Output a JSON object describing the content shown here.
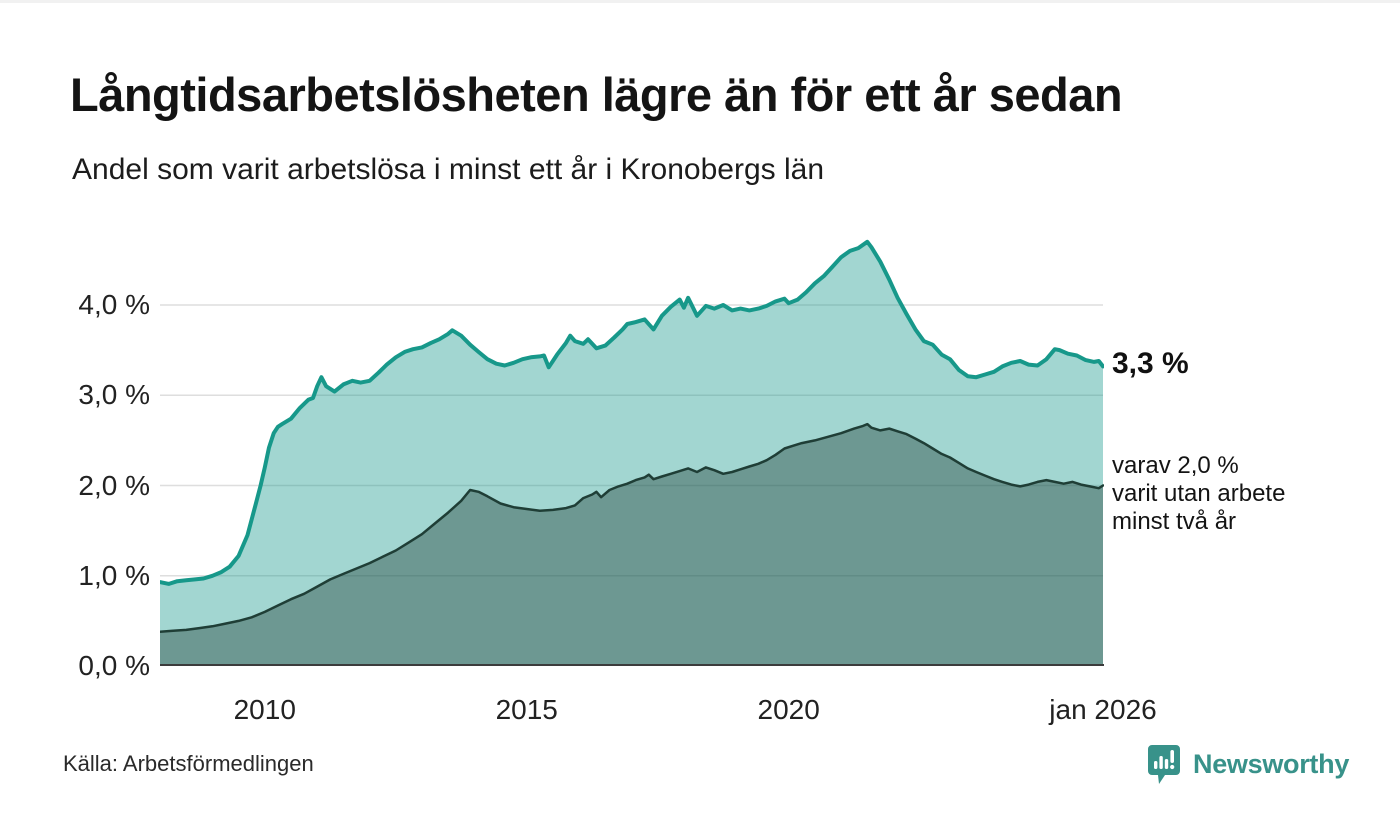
{
  "header": {
    "title": "Långtidsarbetslösheten lägre än för ett år sedan",
    "subtitle": "Andel som varit arbetslösa i minst ett år i Kronobergs län"
  },
  "footer": {
    "source": "Källa: Arbetsförmedlingen",
    "brand": "Newsworthy",
    "brand_icon": "bar-chart-speech-bubble-icon"
  },
  "colors": {
    "teal_line": "#17988a",
    "light_area_fill": "rgba(23,153,139,0.40)",
    "dark_area_overlay": "rgba(31,61,53,0.40)",
    "dark_line": "#1f3e36",
    "gridline": "#dedede",
    "axis_baseline": "#3c3c3c",
    "brand_teal": "#38928a"
  },
  "chart_data": {
    "type": "area",
    "title": "Långtidsarbetslösheten lägre än för ett år sedan",
    "subtitle": "Andel som varit arbetslösa i minst ett år i Kronobergs län",
    "unit": "%",
    "x_range": [
      2008,
      2026
    ],
    "ylim": [
      0,
      4.7
    ],
    "grid": true,
    "y_ticks": [
      {
        "value": 0,
        "label": "0,0 %"
      },
      {
        "value": 1,
        "label": "1,0 %"
      },
      {
        "value": 2,
        "label": "2,0 %"
      },
      {
        "value": 3,
        "label": "3,0 %"
      },
      {
        "value": 4,
        "label": "4,0 %"
      }
    ],
    "x_ticks": [
      {
        "year": 2010,
        "label": "2010"
      },
      {
        "year": 2015,
        "label": "2015"
      },
      {
        "year": 2020,
        "label": "2020"
      },
      {
        "year": 2026,
        "label": "jan 2026"
      }
    ],
    "annotations": {
      "end_label": "3,3 %",
      "end_value": 3.3,
      "secondary_lines": [
        "varav 2,0 %",
        "varit utan arbete",
        "minst två år"
      ],
      "secondary_value": 2.0
    },
    "series": [
      {
        "name": "Arbetslösa minst ett år",
        "points": [
          [
            2008.0,
            0.93
          ],
          [
            2008.17,
            0.91
          ],
          [
            2008.33,
            0.94
          ],
          [
            2008.5,
            0.95
          ],
          [
            2008.67,
            0.96
          ],
          [
            2008.83,
            0.97
          ],
          [
            2009.0,
            1.0
          ],
          [
            2009.17,
            1.04
          ],
          [
            2009.33,
            1.1
          ],
          [
            2009.5,
            1.22
          ],
          [
            2009.67,
            1.45
          ],
          [
            2009.83,
            1.8
          ],
          [
            2009.92,
            2.0
          ],
          [
            2010.0,
            2.2
          ],
          [
            2010.08,
            2.42
          ],
          [
            2010.17,
            2.58
          ],
          [
            2010.25,
            2.65
          ],
          [
            2010.33,
            2.68
          ],
          [
            2010.5,
            2.74
          ],
          [
            2010.67,
            2.86
          ],
          [
            2010.83,
            2.95
          ],
          [
            2010.92,
            2.97
          ],
          [
            2011.0,
            3.1
          ],
          [
            2011.08,
            3.2
          ],
          [
            2011.17,
            3.1
          ],
          [
            2011.33,
            3.04
          ],
          [
            2011.5,
            3.12
          ],
          [
            2011.67,
            3.16
          ],
          [
            2011.83,
            3.14
          ],
          [
            2012.0,
            3.16
          ],
          [
            2012.17,
            3.25
          ],
          [
            2012.33,
            3.34
          ],
          [
            2012.5,
            3.42
          ],
          [
            2012.67,
            3.48
          ],
          [
            2012.83,
            3.51
          ],
          [
            2013.0,
            3.53
          ],
          [
            2013.17,
            3.58
          ],
          [
            2013.33,
            3.62
          ],
          [
            2013.5,
            3.68
          ],
          [
            2013.58,
            3.72
          ],
          [
            2013.75,
            3.66
          ],
          [
            2013.92,
            3.56
          ],
          [
            2014.08,
            3.48
          ],
          [
            2014.25,
            3.4
          ],
          [
            2014.42,
            3.35
          ],
          [
            2014.58,
            3.33
          ],
          [
            2014.75,
            3.36
          ],
          [
            2014.92,
            3.4
          ],
          [
            2015.08,
            3.42
          ],
          [
            2015.25,
            3.43
          ],
          [
            2015.33,
            3.44
          ],
          [
            2015.42,
            3.31
          ],
          [
            2015.5,
            3.38
          ],
          [
            2015.58,
            3.45
          ],
          [
            2015.75,
            3.58
          ],
          [
            2015.83,
            3.66
          ],
          [
            2015.92,
            3.6
          ],
          [
            2016.08,
            3.57
          ],
          [
            2016.17,
            3.62
          ],
          [
            2016.33,
            3.52
          ],
          [
            2016.5,
            3.55
          ],
          [
            2016.67,
            3.64
          ],
          [
            2016.83,
            3.73
          ],
          [
            2016.92,
            3.79
          ],
          [
            2017.08,
            3.81
          ],
          [
            2017.25,
            3.84
          ],
          [
            2017.42,
            3.73
          ],
          [
            2017.58,
            3.88
          ],
          [
            2017.75,
            3.98
          ],
          [
            2017.92,
            4.06
          ],
          [
            2018.0,
            3.97
          ],
          [
            2018.08,
            4.08
          ],
          [
            2018.25,
            3.88
          ],
          [
            2018.42,
            3.99
          ],
          [
            2018.58,
            3.96
          ],
          [
            2018.75,
            4.0
          ],
          [
            2018.92,
            3.94
          ],
          [
            2019.08,
            3.96
          ],
          [
            2019.25,
            3.94
          ],
          [
            2019.42,
            3.96
          ],
          [
            2019.58,
            3.99
          ],
          [
            2019.75,
            4.04
          ],
          [
            2019.92,
            4.07
          ],
          [
            2020.0,
            4.02
          ],
          [
            2020.17,
            4.06
          ],
          [
            2020.33,
            4.14
          ],
          [
            2020.5,
            4.24
          ],
          [
            2020.67,
            4.32
          ],
          [
            2020.83,
            4.42
          ],
          [
            2021.0,
            4.53
          ],
          [
            2021.17,
            4.6
          ],
          [
            2021.33,
            4.63
          ],
          [
            2021.5,
            4.7
          ],
          [
            2021.58,
            4.64
          ],
          [
            2021.75,
            4.48
          ],
          [
            2021.92,
            4.28
          ],
          [
            2022.08,
            4.08
          ],
          [
            2022.25,
            3.9
          ],
          [
            2022.42,
            3.73
          ],
          [
            2022.58,
            3.6
          ],
          [
            2022.75,
            3.56
          ],
          [
            2022.92,
            3.45
          ],
          [
            2023.08,
            3.4
          ],
          [
            2023.25,
            3.28
          ],
          [
            2023.42,
            3.21
          ],
          [
            2023.58,
            3.2
          ],
          [
            2023.75,
            3.23
          ],
          [
            2023.92,
            3.26
          ],
          [
            2024.08,
            3.32
          ],
          [
            2024.25,
            3.36
          ],
          [
            2024.42,
            3.38
          ],
          [
            2024.58,
            3.34
          ],
          [
            2024.75,
            3.33
          ],
          [
            2024.92,
            3.4
          ],
          [
            2025.08,
            3.51
          ],
          [
            2025.17,
            3.5
          ],
          [
            2025.33,
            3.46
          ],
          [
            2025.5,
            3.44
          ],
          [
            2025.67,
            3.39
          ],
          [
            2025.83,
            3.37
          ],
          [
            2025.92,
            3.38
          ],
          [
            2026.0,
            3.32
          ]
        ]
      },
      {
        "name": "Varav utan arbete minst två år",
        "points": [
          [
            2008.0,
            0.38
          ],
          [
            2008.25,
            0.39
          ],
          [
            2008.5,
            0.4
          ],
          [
            2008.75,
            0.42
          ],
          [
            2009.0,
            0.44
          ],
          [
            2009.25,
            0.47
          ],
          [
            2009.5,
            0.5
          ],
          [
            2009.75,
            0.54
          ],
          [
            2010.0,
            0.6
          ],
          [
            2010.25,
            0.67
          ],
          [
            2010.5,
            0.74
          ],
          [
            2010.75,
            0.8
          ],
          [
            2011.0,
            0.88
          ],
          [
            2011.25,
            0.96
          ],
          [
            2011.5,
            1.02
          ],
          [
            2011.75,
            1.08
          ],
          [
            2012.0,
            1.14
          ],
          [
            2012.25,
            1.21
          ],
          [
            2012.5,
            1.28
          ],
          [
            2012.75,
            1.37
          ],
          [
            2013.0,
            1.46
          ],
          [
            2013.25,
            1.58
          ],
          [
            2013.5,
            1.7
          ],
          [
            2013.75,
            1.83
          ],
          [
            2013.92,
            1.95
          ],
          [
            2014.08,
            1.93
          ],
          [
            2014.25,
            1.88
          ],
          [
            2014.5,
            1.8
          ],
          [
            2014.75,
            1.76
          ],
          [
            2015.0,
            1.74
          ],
          [
            2015.25,
            1.72
          ],
          [
            2015.5,
            1.73
          ],
          [
            2015.75,
            1.75
          ],
          [
            2015.92,
            1.78
          ],
          [
            2016.08,
            1.86
          ],
          [
            2016.25,
            1.9
          ],
          [
            2016.33,
            1.93
          ],
          [
            2016.42,
            1.87
          ],
          [
            2016.58,
            1.95
          ],
          [
            2016.75,
            1.99
          ],
          [
            2016.92,
            2.02
          ],
          [
            2017.08,
            2.06
          ],
          [
            2017.25,
            2.09
          ],
          [
            2017.33,
            2.12
          ],
          [
            2017.42,
            2.07
          ],
          [
            2017.58,
            2.1
          ],
          [
            2017.75,
            2.13
          ],
          [
            2017.92,
            2.16
          ],
          [
            2018.08,
            2.19
          ],
          [
            2018.25,
            2.15
          ],
          [
            2018.42,
            2.2
          ],
          [
            2018.58,
            2.17
          ],
          [
            2018.75,
            2.13
          ],
          [
            2018.92,
            2.15
          ],
          [
            2019.08,
            2.18
          ],
          [
            2019.25,
            2.21
          ],
          [
            2019.42,
            2.24
          ],
          [
            2019.58,
            2.28
          ],
          [
            2019.75,
            2.34
          ],
          [
            2019.92,
            2.41
          ],
          [
            2020.08,
            2.44
          ],
          [
            2020.25,
            2.47
          ],
          [
            2020.5,
            2.5
          ],
          [
            2020.75,
            2.54
          ],
          [
            2021.0,
            2.58
          ],
          [
            2021.25,
            2.63
          ],
          [
            2021.42,
            2.66
          ],
          [
            2021.5,
            2.68
          ],
          [
            2021.58,
            2.64
          ],
          [
            2021.75,
            2.61
          ],
          [
            2021.92,
            2.63
          ],
          [
            2022.08,
            2.6
          ],
          [
            2022.25,
            2.57
          ],
          [
            2022.42,
            2.52
          ],
          [
            2022.58,
            2.47
          ],
          [
            2022.75,
            2.41
          ],
          [
            2022.92,
            2.35
          ],
          [
            2023.08,
            2.31
          ],
          [
            2023.25,
            2.25
          ],
          [
            2023.42,
            2.19
          ],
          [
            2023.58,
            2.15
          ],
          [
            2023.75,
            2.11
          ],
          [
            2023.92,
            2.07
          ],
          [
            2024.08,
            2.04
          ],
          [
            2024.25,
            2.01
          ],
          [
            2024.42,
            1.99
          ],
          [
            2024.58,
            2.01
          ],
          [
            2024.75,
            2.04
          ],
          [
            2024.92,
            2.06
          ],
          [
            2025.08,
            2.04
          ],
          [
            2025.25,
            2.02
          ],
          [
            2025.42,
            2.04
          ],
          [
            2025.58,
            2.01
          ],
          [
            2025.75,
            1.99
          ],
          [
            2025.92,
            1.97
          ],
          [
            2026.0,
            2.0
          ]
        ]
      }
    ]
  }
}
